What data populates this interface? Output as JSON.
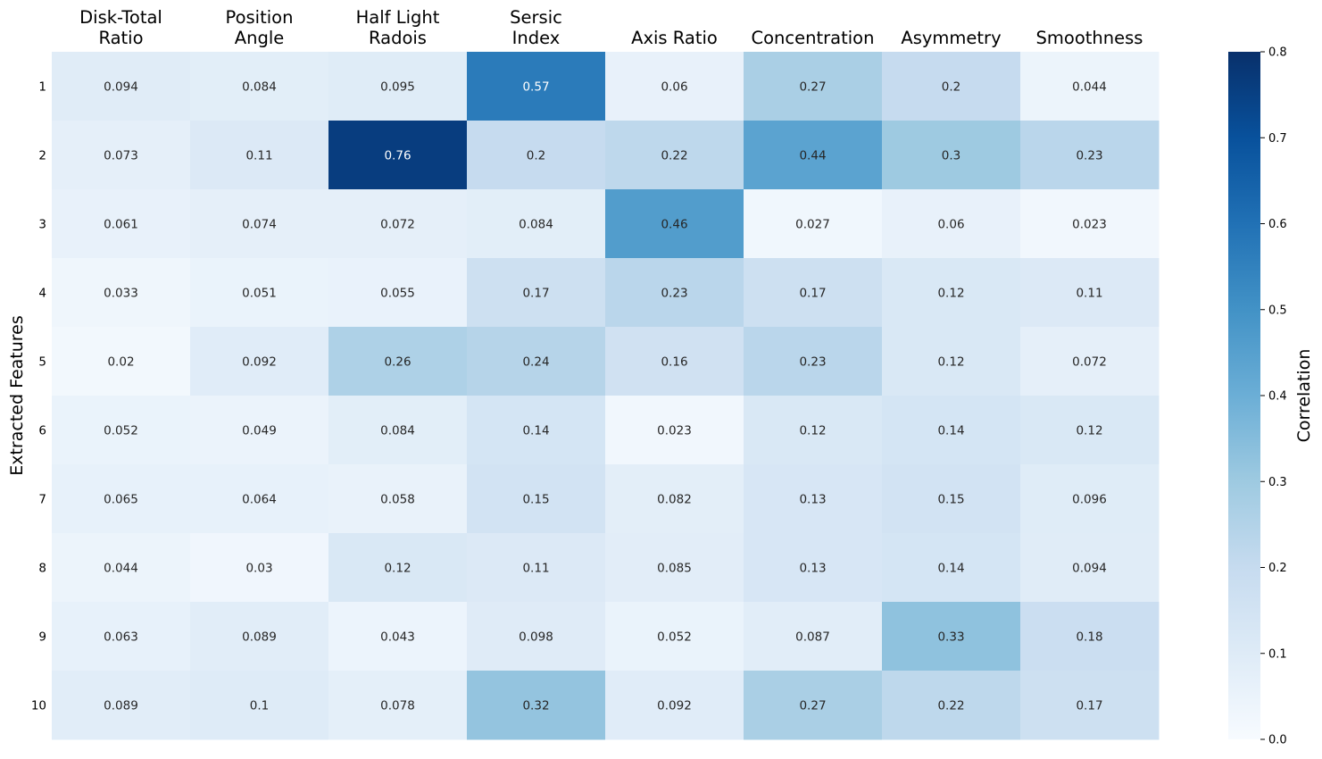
{
  "chart_data": {
    "type": "heatmap",
    "columns": [
      [
        "Disk-Total",
        "Ratio"
      ],
      [
        "Position",
        "Angle"
      ],
      [
        "Half Light",
        "Radois"
      ],
      [
        "Sersic",
        "Index"
      ],
      [
        "Axis Ratio"
      ],
      [
        "Concentration"
      ],
      [
        "Asymmetry"
      ],
      [
        "Smoothness"
      ]
    ],
    "rows": [
      "1",
      "2",
      "3",
      "4",
      "5",
      "6",
      "7",
      "8",
      "9",
      "10"
    ],
    "values": [
      [
        0.094,
        0.084,
        0.095,
        0.57,
        0.06,
        0.27,
        0.2,
        0.044
      ],
      [
        0.073,
        0.11,
        0.76,
        0.2,
        0.22,
        0.44,
        0.3,
        0.23
      ],
      [
        0.061,
        0.074,
        0.072,
        0.084,
        0.46,
        0.027,
        0.06,
        0.023
      ],
      [
        0.033,
        0.051,
        0.055,
        0.17,
        0.23,
        0.17,
        0.12,
        0.11
      ],
      [
        0.02,
        0.092,
        0.26,
        0.24,
        0.16,
        0.23,
        0.12,
        0.072
      ],
      [
        0.052,
        0.049,
        0.084,
        0.14,
        0.023,
        0.12,
        0.14,
        0.12
      ],
      [
        0.065,
        0.064,
        0.058,
        0.15,
        0.082,
        0.13,
        0.15,
        0.096
      ],
      [
        0.044,
        0.03,
        0.12,
        0.11,
        0.085,
        0.13,
        0.14,
        0.094
      ],
      [
        0.063,
        0.089,
        0.043,
        0.098,
        0.052,
        0.087,
        0.33,
        0.18
      ],
      [
        0.089,
        0.1,
        0.078,
        0.32,
        0.092,
        0.27,
        0.22,
        0.17
      ]
    ],
    "ylabel": "Extracted Features",
    "colorbar": {
      "label": "Correlation",
      "range": [
        0,
        0.8
      ],
      "ticks": [
        "0.0",
        "0.1",
        "0.2",
        "0.3",
        "0.4",
        "0.5",
        "0.6",
        "0.7",
        "0.8"
      ],
      "colormap": "Blues"
    }
  }
}
